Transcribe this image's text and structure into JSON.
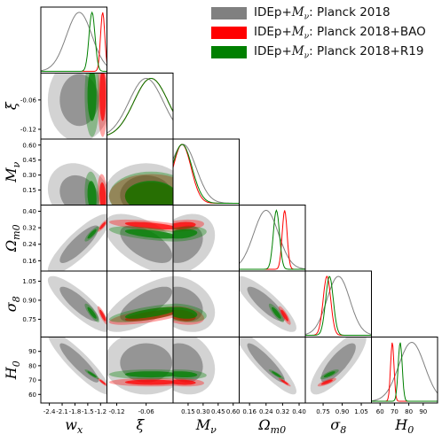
{
  "chart_data": {
    "type": "corner_plot",
    "parameters": [
      {
        "key": "wx",
        "label": "w",
        "sub": "x",
        "ticks": [
          "-2.4",
          "-2.1",
          "-1.8",
          "-1.5",
          "-1.2"
        ],
        "tick_values": [
          -2.4,
          -2.1,
          -1.8,
          -1.5,
          -1.2
        ],
        "range": [
          -2.6,
          -1.05
        ]
      },
      {
        "key": "xi",
        "label": "ξ",
        "sub": "",
        "ticks": [
          "-0.12",
          "-0.06"
        ],
        "tick_values": [
          -0.12,
          -0.06
        ],
        "range": [
          -0.14,
          -0.005
        ]
      },
      {
        "key": "Mnu",
        "label": "M",
        "sub": "ν",
        "ticks": [
          "0.15",
          "0.30",
          "0.45",
          "0.60"
        ],
        "tick_values": [
          0.15,
          0.3,
          0.45,
          0.6
        ],
        "range": [
          0.0,
          0.66
        ]
      },
      {
        "key": "Om0",
        "label": "Ω",
        "sub": "m0",
        "ticks": [
          "0.16",
          "0.24",
          "0.32",
          "0.40"
        ],
        "tick_values": [
          0.16,
          0.24,
          0.32,
          0.4
        ],
        "range": [
          0.11,
          0.43
        ]
      },
      {
        "key": "s8",
        "label": "σ",
        "sub": "8",
        "ticks": [
          "0.75",
          "0.90",
          "1.05"
        ],
        "tick_values": [
          0.75,
          0.9,
          1.05
        ],
        "range": [
          0.61,
          1.13
        ]
      },
      {
        "key": "H0",
        "label": "H",
        "sub": "0",
        "ticks": [
          "60",
          "70",
          "80",
          "90"
        ],
        "tick_values": [
          60,
          70,
          80,
          90
        ],
        "range": [
          54,
          100
        ]
      }
    ],
    "series": [
      {
        "name": "IDEp+M_ν: Planck 2018",
        "legend_main": "IDEp+",
        "legend_sym": "M",
        "legend_sub": "ν",
        "legend_tail": ": Planck 2018",
        "color": "#808080",
        "means": {
          "wx": -1.7,
          "xi": -0.06,
          "Mnu": 0.1,
          "Om0": 0.24,
          "s8": 0.87,
          "H0": 82
        },
        "sigmas": {
          "wx": 0.3,
          "xi": 0.035,
          "Mnu": 0.13,
          "Om0": 0.06,
          "s8": 0.09,
          "H0": 9
        }
      },
      {
        "name": "IDEp+M_ν: Planck 2018+BAO",
        "legend_main": "IDEp+",
        "legend_sym": "M",
        "legend_sub": "ν",
        "legend_tail": ": Planck 2018+BAO",
        "color": "#ff0000",
        "means": {
          "wx": -1.15,
          "xi": -0.05,
          "Mnu": 0.09,
          "Om0": 0.33,
          "s8": 0.78,
          "H0": 68.5
        },
        "sigmas": {
          "wx": 0.05,
          "xi": 0.035,
          "Mnu": 0.09,
          "Om0": 0.012,
          "s8": 0.03,
          "H0": 1.2
        }
      },
      {
        "name": "IDEp+M_ν: Planck 2018+R19",
        "legend_main": "IDEp+",
        "legend_sym": "M",
        "legend_sub": "ν",
        "legend_tail": ": Planck 2018+R19",
        "color": "#008000",
        "means": {
          "wx": -1.4,
          "xi": -0.05,
          "Mnu": 0.09,
          "Om0": 0.29,
          "s8": 0.8,
          "H0": 74
        },
        "sigmas": {
          "wx": 0.07,
          "xi": 0.035,
          "Mnu": 0.1,
          "Om0": 0.015,
          "s8": 0.03,
          "H0": 1.4
        }
      }
    ]
  }
}
